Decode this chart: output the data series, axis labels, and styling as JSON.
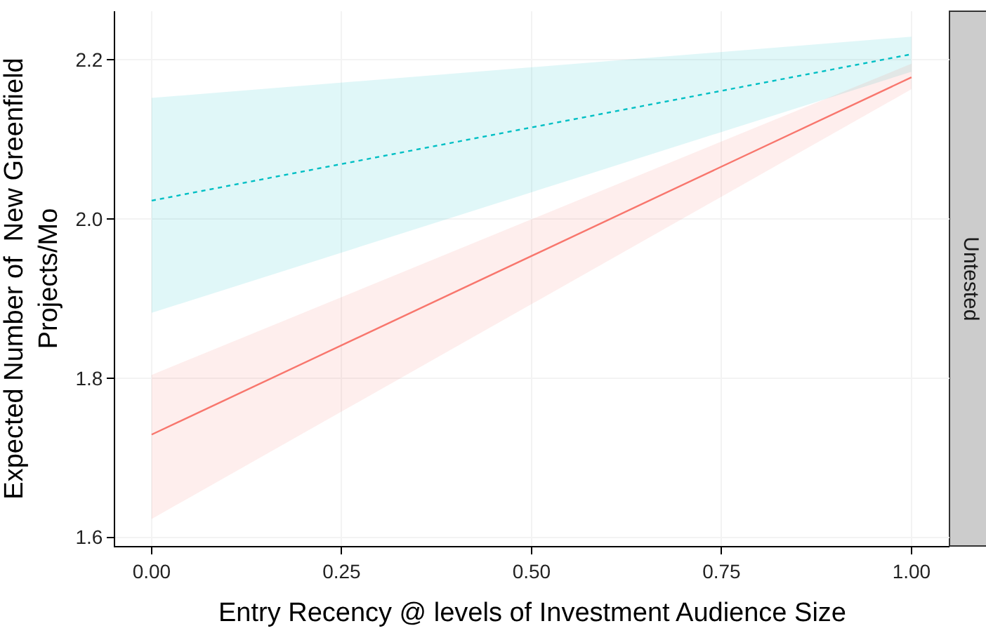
{
  "chart_data": {
    "type": "line",
    "xlabel": "Entry Recency @ levels of Investment Audience Size",
    "ylabel": "Expected Number of  New Greenfield\nProjects/Mo",
    "x": [
      0,
      1
    ],
    "series": [
      {
        "color": "#00bfc4",
        "values": [
          2.023,
          2.207
        ],
        "lower": [
          1.882,
          2.185
        ],
        "upper": [
          2.152,
          2.229
        ],
        "line_style": "dotted"
      },
      {
        "color": "#f8766d",
        "values": [
          1.729,
          2.178
        ],
        "lower": [
          1.623,
          2.163
        ],
        "upper": [
          1.804,
          2.195
        ],
        "line_style": "solid"
      }
    ],
    "xlim": [
      -0.048,
      1.05
    ],
    "xticks": [
      {
        "value": 0,
        "label": "0.00"
      },
      {
        "value": 0.25,
        "label": "0.25"
      },
      {
        "value": 0.5,
        "label": "0.50"
      },
      {
        "value": 0.75,
        "label": "0.75"
      },
      {
        "value": 1,
        "label": "1.00"
      }
    ],
    "ylim": [
      1.589,
      2.261
    ],
    "yticks": [
      {
        "value": 1.6,
        "label": "1.6"
      },
      {
        "value": 1.8,
        "label": "1.8"
      },
      {
        "value": 2.0,
        "label": "2.0"
      },
      {
        "value": 2.2,
        "label": "2.2"
      }
    ],
    "annotations": [
      "Untested"
    ],
    "grid": true,
    "marker": "none"
  }
}
